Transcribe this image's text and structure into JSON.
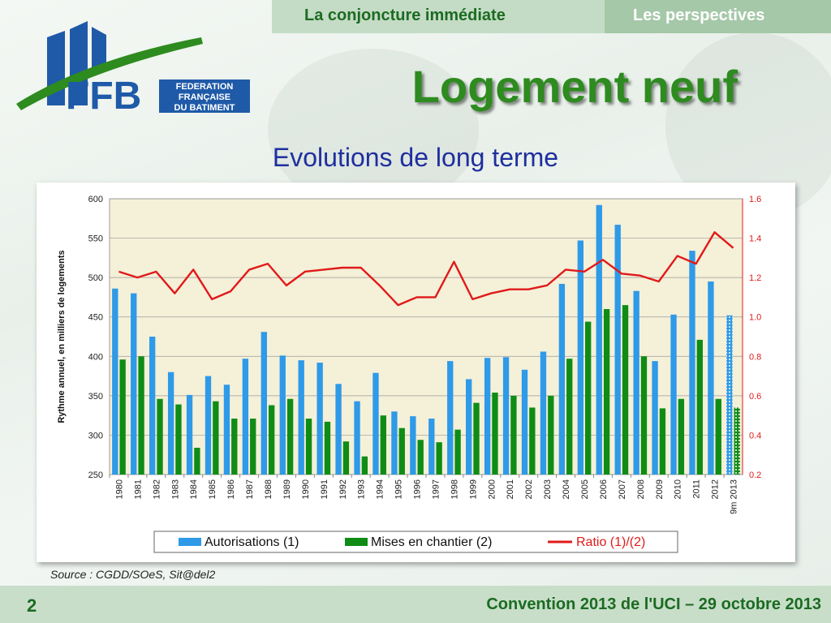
{
  "header": {
    "tab_active": "La conjoncture immédiate",
    "tab_inactive": "Les perspectives"
  },
  "logo": {
    "abbr": "FFB",
    "line1": "FEDERATION",
    "line2": "FRANÇAISE",
    "line3": "DU BATIMENT"
  },
  "title": "Logement neuf",
  "subtitle": "Evolutions de long terme",
  "source": "Source : CGDD/SOeS, Sit@del2",
  "footer": {
    "page_number": "2",
    "text": "Convention 2013 de l'UCI – 29 octobre 2013"
  },
  "colors": {
    "autorisations": "#2e9ae8",
    "mises": "#0f8c16",
    "ratio": "#e01a1a",
    "plot_bg": "#f5f0d8",
    "brand_green": "#2e8b1f",
    "brand_blue": "#1f5aa8"
  },
  "chart_data": {
    "type": "bar",
    "ylabel": "Rythme annuel, en milliers de logements",
    "ylim": [
      250,
      600
    ],
    "y_ticks": [
      "600",
      "550",
      "500",
      "450",
      "400",
      "350",
      "300",
      "250"
    ],
    "y2lim": [
      0.2,
      1.6
    ],
    "y2_ticks": [
      "1.6",
      "1.4",
      "1.2",
      "1.0",
      "0.8",
      "0.6",
      "0.4",
      "0.2"
    ],
    "grid": true,
    "legend_position": "bottom",
    "categories": [
      "1980",
      "1981",
      "1982",
      "1983",
      "1984",
      "1985",
      "1986",
      "1987",
      "1988",
      "1989",
      "1990",
      "1991",
      "1992",
      "1993",
      "1994",
      "1995",
      "1996",
      "1997",
      "1998",
      "1999",
      "2000",
      "2001",
      "2002",
      "2003",
      "2004",
      "2005",
      "2006",
      "2007",
      "2008",
      "2009",
      "2010",
      "2011",
      "2012",
      "2013"
    ],
    "last_category_prefix": "9m",
    "series": [
      {
        "name": "Autorisations (1)",
        "type": "bar",
        "axis": "left",
        "values": [
          486,
          480,
          425,
          380,
          351,
          375,
          364,
          397,
          431,
          401,
          395,
          392,
          365,
          343,
          379,
          330,
          324,
          321,
          394,
          371,
          398,
          399,
          383,
          406,
          492,
          547,
          592,
          567,
          483,
          394,
          453,
          534,
          495,
          452
        ]
      },
      {
        "name": "Mises en chantier (2)",
        "type": "bar",
        "axis": "left",
        "values": [
          396,
          400,
          346,
          339,
          284,
          343,
          321,
          321,
          338,
          346,
          321,
          317,
          292,
          273,
          325,
          309,
          294,
          291,
          307,
          341,
          354,
          350,
          335,
          350,
          397,
          444,
          460,
          465,
          400,
          334,
          346,
          421,
          346,
          335
        ]
      },
      {
        "name": "Ratio (1)/(2)",
        "type": "line",
        "axis": "right",
        "values": [
          1.23,
          1.2,
          1.23,
          1.12,
          1.24,
          1.09,
          1.13,
          1.24,
          1.27,
          1.16,
          1.23,
          1.24,
          1.25,
          1.25,
          1.16,
          1.06,
          1.1,
          1.1,
          1.28,
          1.09,
          1.12,
          1.14,
          1.14,
          1.16,
          1.24,
          1.23,
          1.29,
          1.22,
          1.21,
          1.18,
          1.31,
          1.27,
          1.43,
          1.35
        ]
      }
    ]
  }
}
